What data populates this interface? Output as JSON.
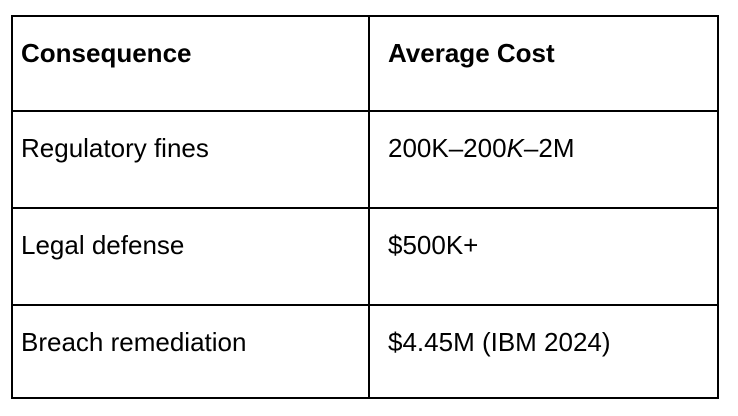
{
  "colors": {
    "border": "#000000",
    "text": "#000000",
    "bg": "#ffffff"
  },
  "table": {
    "headers": [
      {
        "label": "Consequence"
      },
      {
        "label": "Average Cost"
      }
    ],
    "rows": [
      {
        "consequence": "Regulatory fines",
        "cost_pre": "200K–200",
        "cost_italic": "K",
        "cost_post": "–2M"
      },
      {
        "consequence": "Legal defense",
        "cost_pre": "$500K+",
        "cost_italic": "",
        "cost_post": ""
      },
      {
        "consequence": "Breach remediation",
        "cost_pre": "$4.45M (IBM 2024)",
        "cost_italic": "",
        "cost_post": ""
      }
    ]
  }
}
